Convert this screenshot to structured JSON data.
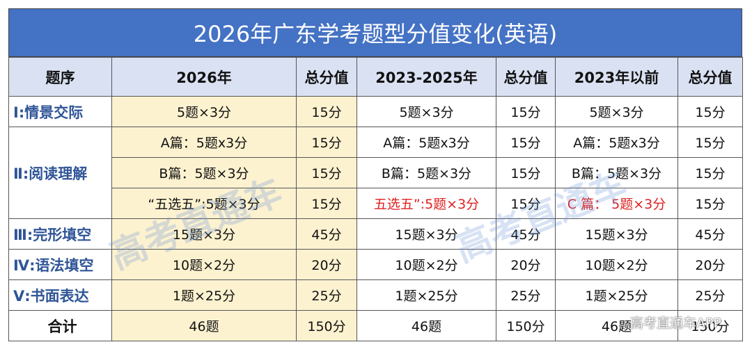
{
  "title": "2026年广东学考题型分值变化(英语)",
  "table": {
    "header": [
      "题序",
      "2026年",
      "总分值",
      "2023-2025年",
      "总分值",
      "2023年以前",
      "总分值"
    ],
    "rows": [
      {
        "label": "Ⅰ:情景交际",
        "lines": [
          [
            "5题×3分",
            "15分",
            "5题×3分",
            "15分",
            "5题×3分",
            "15分"
          ]
        ]
      },
      {
        "label": "Ⅱ:阅读理解",
        "lines": [
          [
            "A篇：5题x3分",
            "15分",
            "A篇：5题x3分",
            "15分",
            "A篇：5题x3分",
            "15分"
          ],
          [
            "B篇：5题×3分",
            "15分",
            "B篇：5题×3分",
            "15分",
            "B篇：5题×3分",
            "15分"
          ],
          [
            "“五选五”:5题×3分",
            "15分",
            "五选五”:5题×3分",
            "15分",
            "C 篇： 5题×3分",
            "15分"
          ]
        ]
      },
      {
        "label": "Ⅲ:完形填空",
        "lines": [
          [
            "15题×3分",
            "45分",
            "15题×3分",
            "45分",
            "15题×3分",
            "45分"
          ]
        ]
      },
      {
        "label": "Ⅳ:语法填空",
        "lines": [
          [
            "10题×2分",
            "20分",
            "10题×2分",
            "20分",
            "10题×2分",
            "20分"
          ]
        ]
      },
      {
        "label": "Ⅴ:书面表达",
        "lines": [
          [
            "1题×25分",
            "25分",
            "1题×25分",
            "25分",
            "1题×25分",
            "25分"
          ]
        ]
      },
      {
        "label": "合计",
        "lines": [
          [
            "46题",
            "150分",
            "46题",
            "150分",
            "46题",
            "150分"
          ]
        ]
      }
    ]
  },
  "watermark": "高考直通车",
  "watermark_app": "高考直通车APP"
}
